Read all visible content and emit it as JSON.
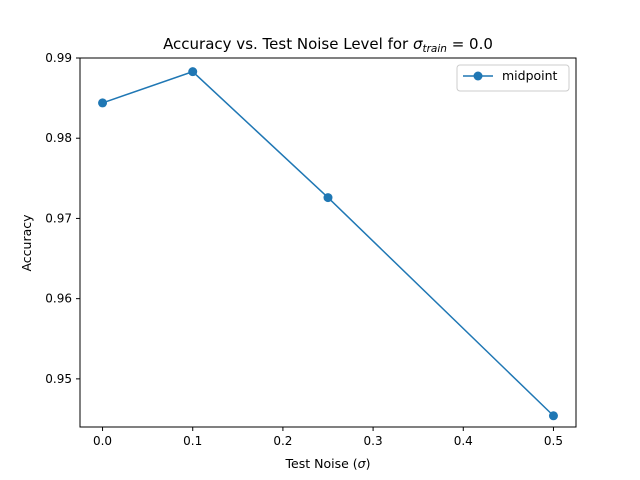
{
  "chart_data": {
    "type": "line",
    "title_main": "Accuracy vs. Test Noise Level for ",
    "title_symbol": "σ",
    "title_subscript": "train",
    "title_suffix": " = 0.0",
    "xlabel_main": "Test Noise (",
    "xlabel_symbol": "σ",
    "xlabel_suffix": ")",
    "ylabel": "Accuracy",
    "xlim": [
      -0.025,
      0.525
    ],
    "ylim": [
      0.944,
      0.99
    ],
    "xticks": [
      0.0,
      0.1,
      0.2,
      0.3,
      0.4,
      0.5
    ],
    "xtick_labels": [
      "0.0",
      "0.1",
      "0.2",
      "0.3",
      "0.4",
      "0.5"
    ],
    "yticks": [
      0.95,
      0.96,
      0.97,
      0.98,
      0.99
    ],
    "ytick_labels": [
      "0.95",
      "0.96",
      "0.97",
      "0.98",
      "0.99"
    ],
    "grid": false,
    "legend_position": "top-right",
    "series": [
      {
        "name": "midpoint",
        "color": "#1f77b4",
        "marker": "circle",
        "x": [
          0.0,
          0.1,
          0.25,
          0.5
        ],
        "y": [
          0.9844,
          0.9883,
          0.9726,
          0.9454
        ]
      }
    ]
  }
}
